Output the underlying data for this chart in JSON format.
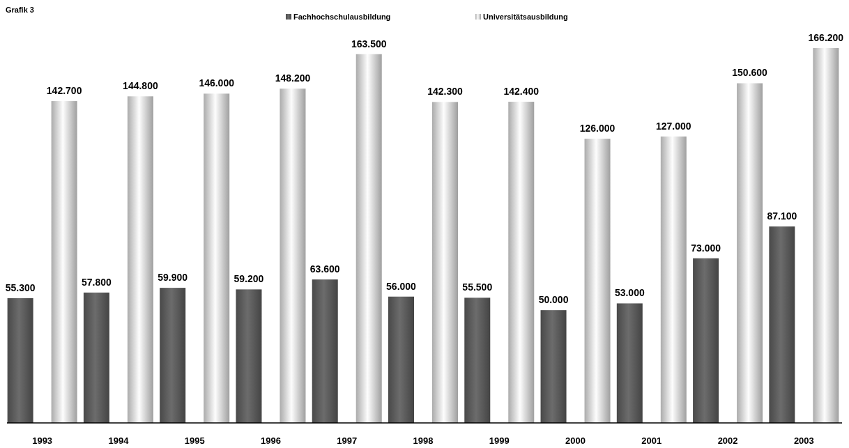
{
  "chart_data": {
    "type": "bar",
    "title": "Grafik 3",
    "categories": [
      "1993",
      "1994",
      "1995",
      "1996",
      "1997",
      "1998",
      "1999",
      "2000",
      "2001",
      "2002",
      "2003"
    ],
    "series": [
      {
        "name": "Fachhochschulausbildung",
        "color": "#5a5a5a",
        "values": [
          55300,
          57800,
          59900,
          59200,
          63600,
          56000,
          55500,
          50000,
          53000,
          73000,
          87100
        ],
        "value_labels": [
          "55.300",
          "57.800",
          "59.900",
          "59.200",
          "63.600",
          "56.000",
          "55.500",
          "50.000",
          "53.000",
          "73.000",
          "87.100"
        ]
      },
      {
        "name": "Universitätsausbildung",
        "color": "#d4d4d4",
        "values": [
          142700,
          144800,
          146000,
          148200,
          163500,
          142300,
          142400,
          126000,
          127000,
          150600,
          166200
        ],
        "value_labels": [
          "142.700",
          "144.800",
          "146.000",
          "148.200",
          "163.500",
          "142.300",
          "142.400",
          "126.000",
          "127.000",
          "150.600",
          "166.200"
        ]
      }
    ],
    "legend": "top"
  }
}
